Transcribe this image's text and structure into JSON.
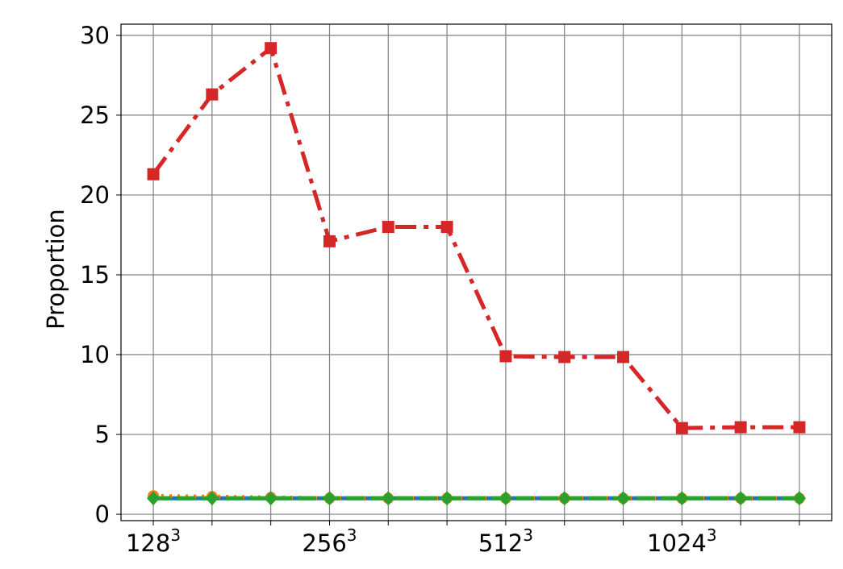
{
  "chart_data": {
    "type": "line",
    "title": "",
    "xlabel": "",
    "ylabel": "Proportion",
    "ylim": [
      -0.4,
      30.7
    ],
    "grid": true,
    "x": [
      1,
      2,
      3,
      4,
      5,
      6,
      7,
      8,
      9,
      10,
      11,
      12
    ],
    "x_tick_positions": [
      1,
      4,
      7,
      10
    ],
    "x_tick_labels": [
      {
        "base": "128",
        "exp": "3"
      },
      {
        "base": "256",
        "exp": "3"
      },
      {
        "base": "512",
        "exp": "3"
      },
      {
        "base": "1024",
        "exp": "3"
      }
    ],
    "y_ticks": [
      0,
      5,
      10,
      15,
      20,
      25,
      30
    ],
    "series": [
      {
        "color": "#1f77b4",
        "dash": "solid",
        "marker": "none",
        "values": [
          1.0,
          1.0,
          1.0,
          1.0,
          1.0,
          1.0,
          1.0,
          1.0,
          1.0,
          1.0,
          1.0,
          1.0
        ]
      },
      {
        "color": "#ff7f0e",
        "dash": "dotted",
        "marker": "circle",
        "values": [
          1.15,
          1.1,
          1.05,
          1.0,
          1.0,
          1.0,
          1.0,
          1.0,
          1.0,
          1.0,
          1.0,
          1.0
        ]
      },
      {
        "color": "#d62728",
        "dash": "dashdot",
        "marker": "square",
        "values": [
          21.3,
          26.3,
          29.2,
          17.1,
          18.0,
          18.0,
          9.9,
          9.85,
          9.85,
          5.4,
          5.45,
          5.45
        ]
      },
      {
        "color": "#2ca02c",
        "dash": "dashed",
        "marker": "diamond",
        "values": [
          1.0,
          1.0,
          1.0,
          1.0,
          1.0,
          1.0,
          1.0,
          1.0,
          1.0,
          1.0,
          1.0,
          1.0
        ]
      }
    ]
  }
}
